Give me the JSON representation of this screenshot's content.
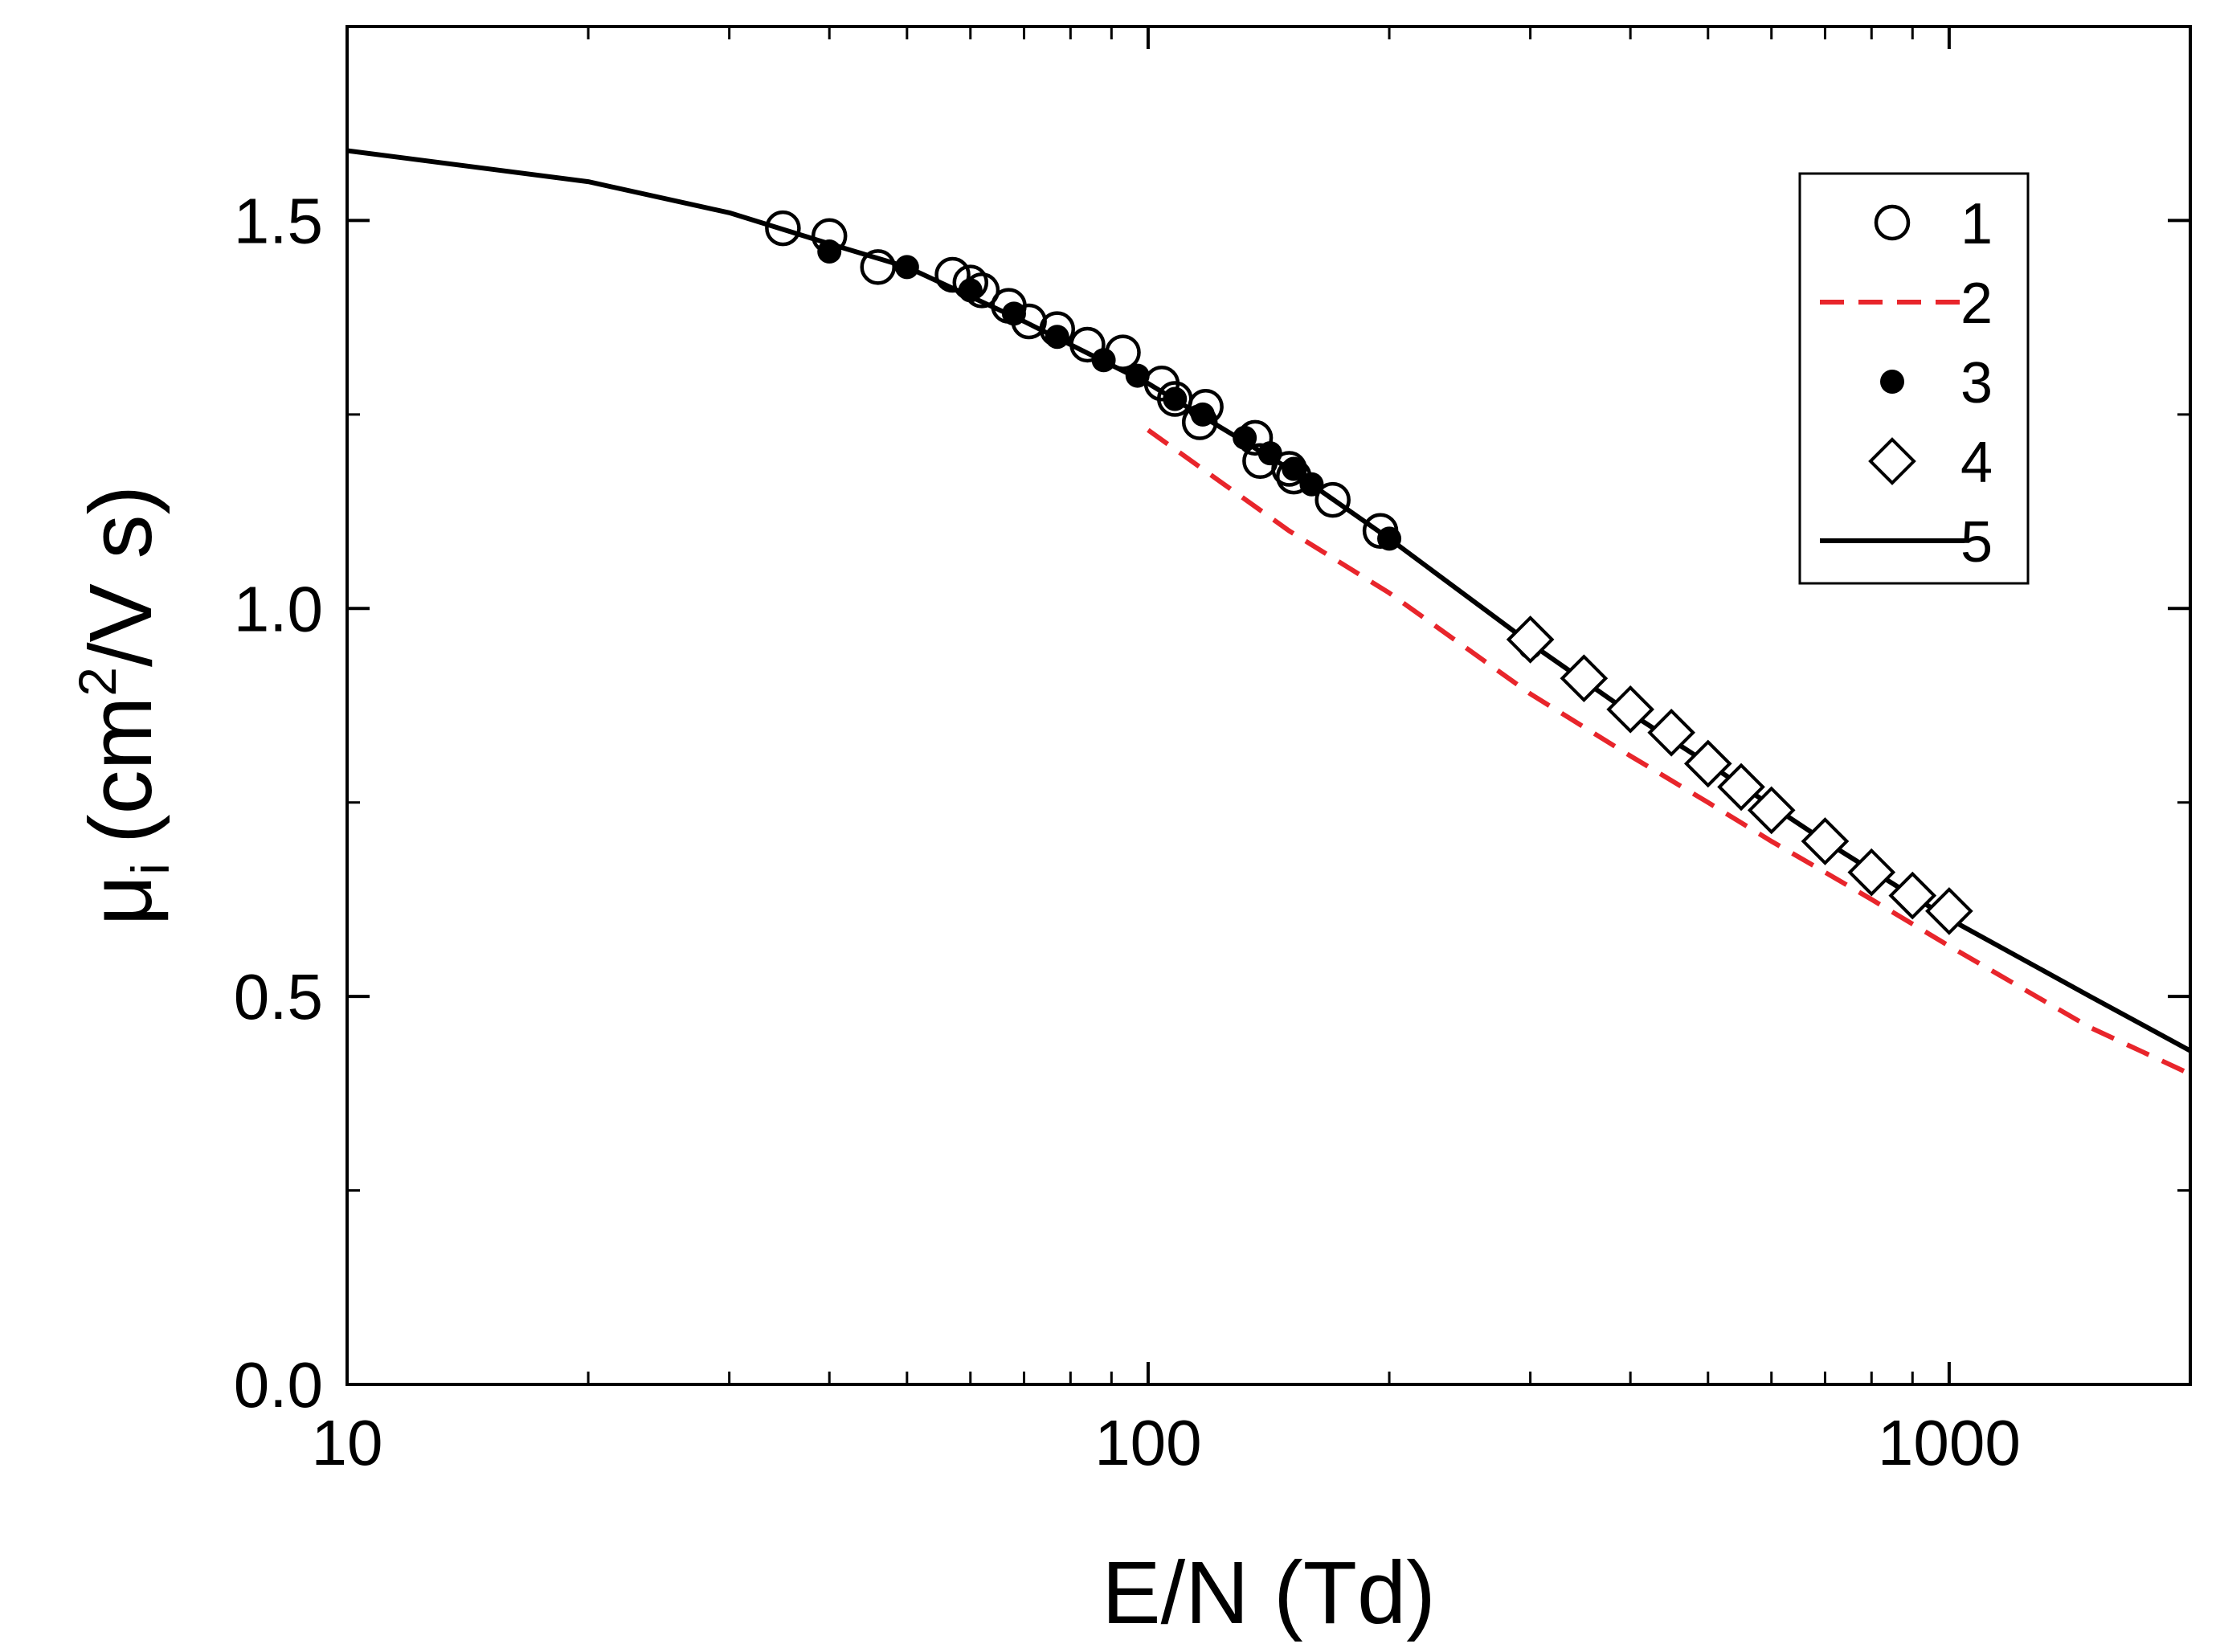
{
  "chart_data": {
    "type": "scatter",
    "xscale": "log",
    "xlim": [
      10,
      2000
    ],
    "ylim": [
      0.0,
      1.75
    ],
    "xlabel": "E/N (Td)",
    "ylabel": "μ_i (cm²/V s)",
    "ylabel_parts": {
      "mu": "μ",
      "sub": "i",
      "open": "(cm",
      "sup": "2",
      "close": "/V s)"
    },
    "x_ticks": [
      10,
      100,
      1000
    ],
    "x_tick_labels": [
      "10",
      "100",
      "1000"
    ],
    "y_ticks": [
      0.0,
      0.5,
      1.0,
      1.5
    ],
    "y_tick_labels": [
      "0.0",
      "0.5",
      "1.0",
      "1.5"
    ],
    "y_minor_ticks": [
      0.25,
      0.75,
      1.25
    ],
    "x_minor_ticks": [
      20,
      30,
      40,
      50,
      60,
      70,
      80,
      90,
      200,
      300,
      400,
      500,
      600,
      700,
      800,
      900
    ],
    "legend_position": "top-right",
    "colors": {
      "series2": "#e8252b",
      "black": "#000000"
    },
    "series": [
      {
        "name": "1",
        "marker": "open-circle",
        "x": [
          35,
          40,
          46,
          57,
          60,
          62,
          67,
          71,
          77,
          84,
          93,
          104,
          108,
          118,
          116,
          136,
          138,
          150,
          152,
          170,
          195
        ],
        "y": [
          1.49,
          1.48,
          1.44,
          1.43,
          1.42,
          1.41,
          1.39,
          1.37,
          1.36,
          1.34,
          1.33,
          1.29,
          1.27,
          1.26,
          1.24,
          1.22,
          1.19,
          1.18,
          1.17,
          1.14,
          1.1
        ]
      },
      {
        "name": "2",
        "marker": "dashed-line",
        "x": [
          100,
          150,
          200,
          300,
          400,
          500,
          600,
          700,
          800,
          1000,
          1500,
          2000
        ],
        "y": [
          1.23,
          1.1,
          1.02,
          0.89,
          0.81,
          0.75,
          0.7,
          0.66,
          0.625,
          0.565,
          0.46,
          0.4
        ]
      },
      {
        "name": "3",
        "marker": "filled-circle",
        "x": [
          40,
          50,
          60,
          68,
          77,
          88,
          97,
          108,
          117,
          132,
          142,
          152,
          160,
          200,
          300
        ],
        "y": [
          1.46,
          1.44,
          1.41,
          1.38,
          1.35,
          1.32,
          1.3,
          1.27,
          1.25,
          1.22,
          1.2,
          1.18,
          1.16,
          1.09,
          0.95
        ]
      },
      {
        "name": "4",
        "marker": "open-diamond",
        "x": [
          300,
          350,
          400,
          450,
          500,
          550,
          600,
          700,
          800,
          900,
          1000
        ],
        "y": [
          0.96,
          0.91,
          0.87,
          0.84,
          0.8,
          0.77,
          0.74,
          0.7,
          0.66,
          0.63,
          0.61
        ]
      },
      {
        "name": "5",
        "marker": "solid-line",
        "x": [
          10,
          20,
          30,
          40,
          50,
          70,
          100,
          150,
          200,
          300,
          400,
          500,
          700,
          1000,
          1500,
          2000
        ],
        "y": [
          1.59,
          1.55,
          1.51,
          1.47,
          1.44,
          1.37,
          1.29,
          1.18,
          1.09,
          0.955,
          0.865,
          0.8,
          0.7,
          0.6,
          0.5,
          0.43
        ]
      }
    ]
  }
}
